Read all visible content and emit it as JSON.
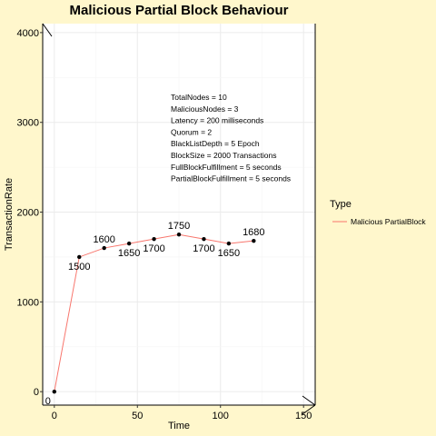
{
  "chart_data": {
    "type": "line",
    "title": "Malicious Partial Block Behaviour",
    "xlabel": "Time",
    "ylabel": "TransactionRate",
    "xlim": [
      -7,
      157
    ],
    "ylim": [
      -150,
      4100
    ],
    "x_ticks": [
      0,
      50,
      100,
      150
    ],
    "y_ticks": [
      0,
      1000,
      2000,
      3000,
      4000
    ],
    "grid": true,
    "legend_position": "right",
    "legend_title": "Type",
    "series": [
      {
        "name": "Malicious PartialBlock",
        "color": "#f8766d",
        "x": [
          0,
          15,
          30,
          45,
          60,
          75,
          90,
          105,
          120
        ],
        "values": [
          0,
          1500,
          1600,
          1650,
          1700,
          1750,
          1700,
          1650,
          1680
        ],
        "labels": [
          "0",
          "1500",
          "1600",
          "1650",
          "1700",
          "1750",
          "1700",
          "1650",
          "1680"
        ]
      }
    ],
    "annotations": [
      "TotalNodes = 10",
      "MaliciousNodes = 3",
      "Latency = 200 milliseconds",
      "Quorum = 2",
      "BlackListDepth = 5 Epoch",
      "BlockSize = 2000 Transactions",
      "FullBlockFulfillment = 5 seconds",
      "PartialBlockFulfillment = 5 seconds"
    ]
  }
}
